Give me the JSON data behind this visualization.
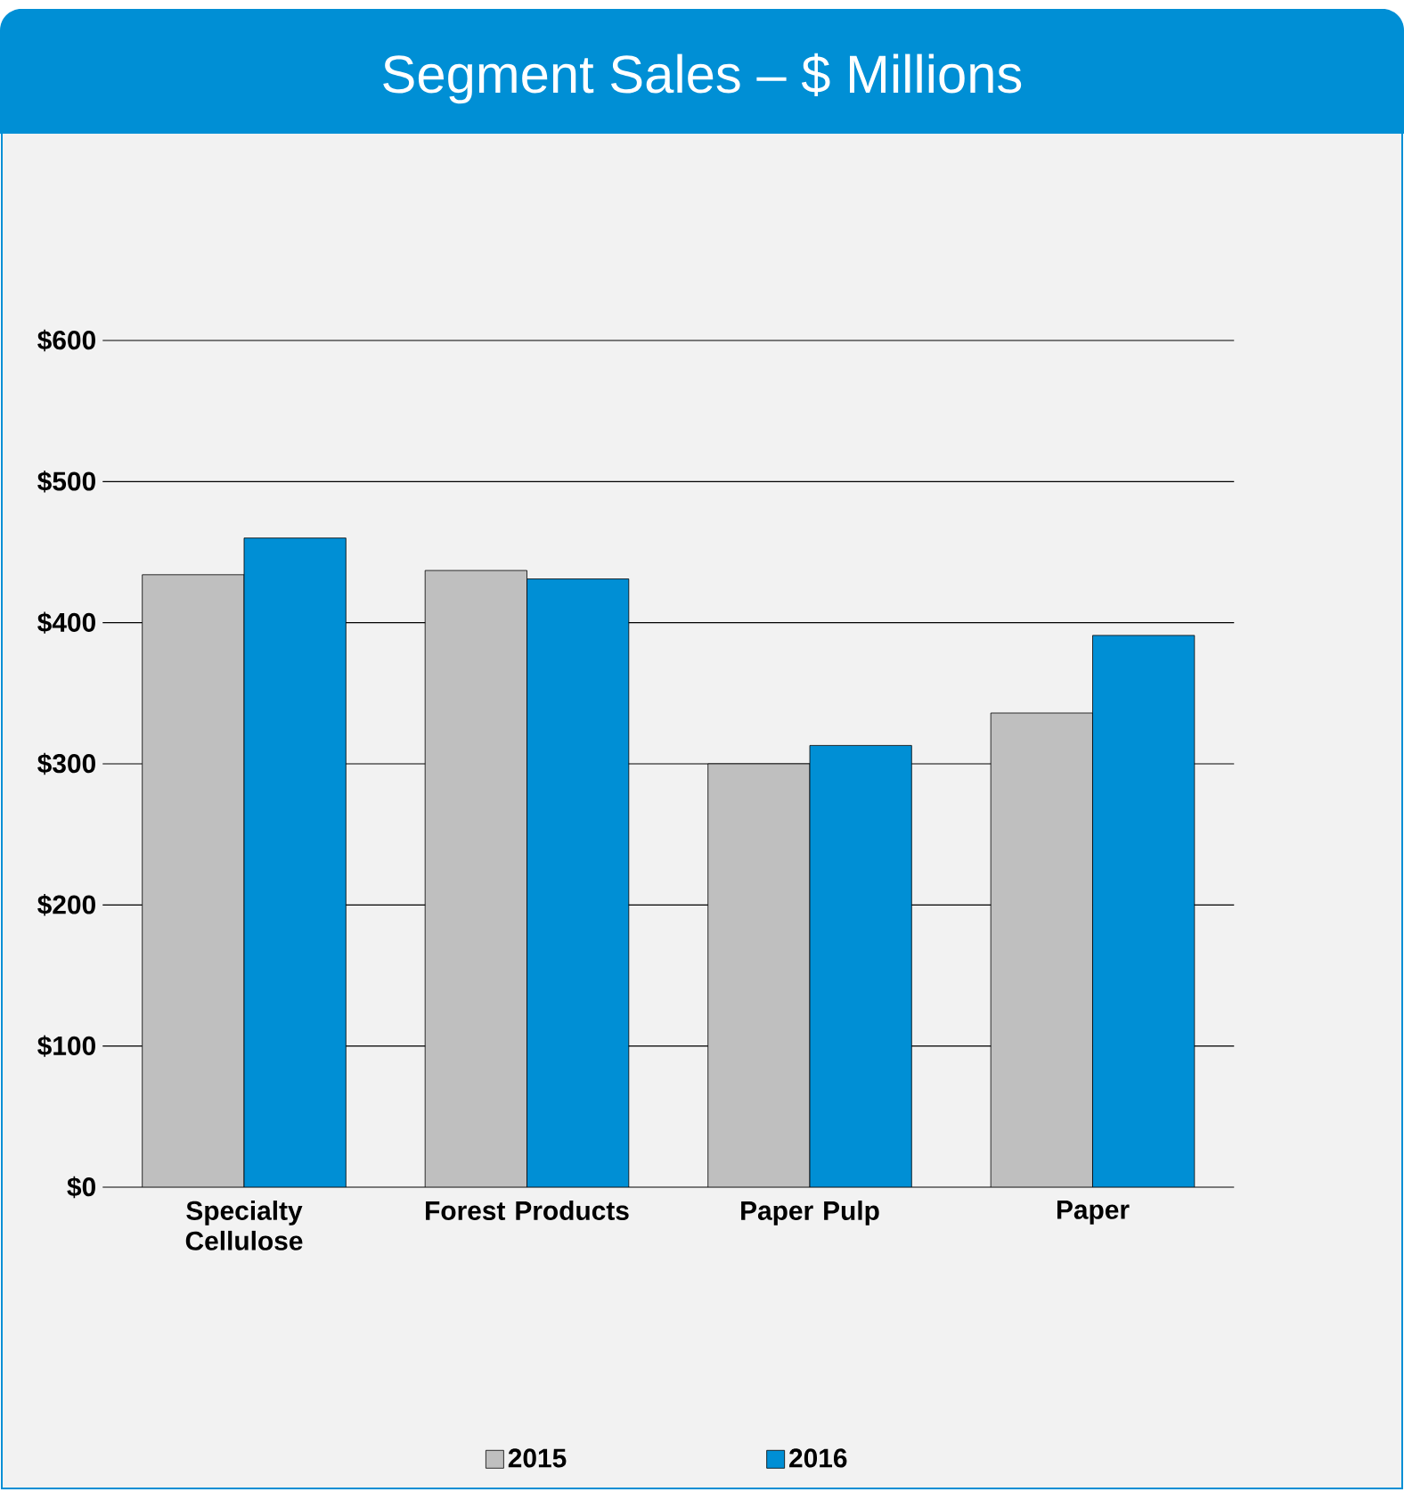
{
  "chart_data": {
    "type": "bar",
    "title": "Segment Sales – $ Millions",
    "categories": [
      "Specialty Cellulose",
      "Forest Products",
      "Paper Pulp",
      "Paper"
    ],
    "series": [
      {
        "name": "2015",
        "color": "#bfbfbf",
        "values": [
          434,
          437,
          300,
          336
        ]
      },
      {
        "name": "2016",
        "color": "#008fd5",
        "values": [
          460,
          431,
          313,
          391
        ]
      }
    ],
    "ylim": [
      0,
      600
    ],
    "yticks": [
      {
        "value": 0,
        "label": "$0"
      },
      {
        "value": 100,
        "label": "$100"
      },
      {
        "value": 200,
        "label": "$200"
      },
      {
        "value": 300,
        "label": "$300"
      },
      {
        "value": 400,
        "label": "$400"
      },
      {
        "value": 500,
        "label": "$500"
      },
      {
        "value": 600,
        "label": "$600"
      }
    ],
    "grid": "y",
    "legend": "bottom"
  }
}
